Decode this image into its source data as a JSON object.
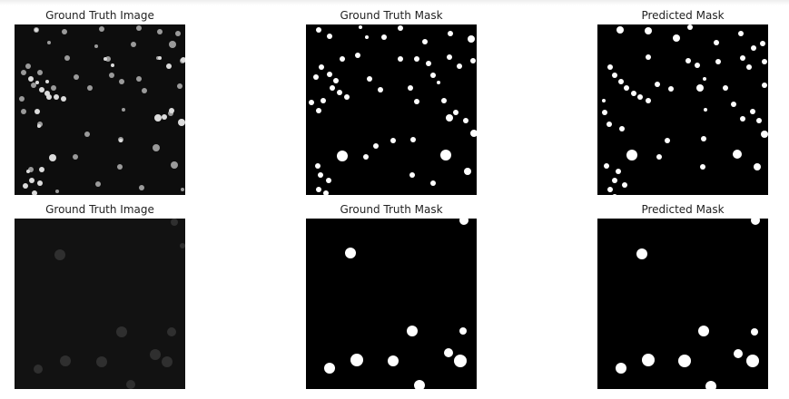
{
  "figure": {
    "rows": [
      {
        "panels": [
          {
            "title": "Ground Truth Image",
            "kind": "grayscale-microscopy"
          },
          {
            "title": "Ground Truth Mask",
            "kind": "binary-mask"
          },
          {
            "title": "Predicted Mask",
            "kind": "binary-mask"
          }
        ]
      },
      {
        "panels": [
          {
            "title": "Ground Truth Image",
            "kind": "grayscale-microscopy"
          },
          {
            "title": "Ground Truth Mask",
            "kind": "binary-mask"
          },
          {
            "title": "Predicted Mask",
            "kind": "binary-mask"
          }
        ]
      }
    ]
  },
  "colors": {
    "background": "#ffffff",
    "image_background": "#000000",
    "mask_foreground": "#ffffff",
    "title_text": "#222222"
  }
}
